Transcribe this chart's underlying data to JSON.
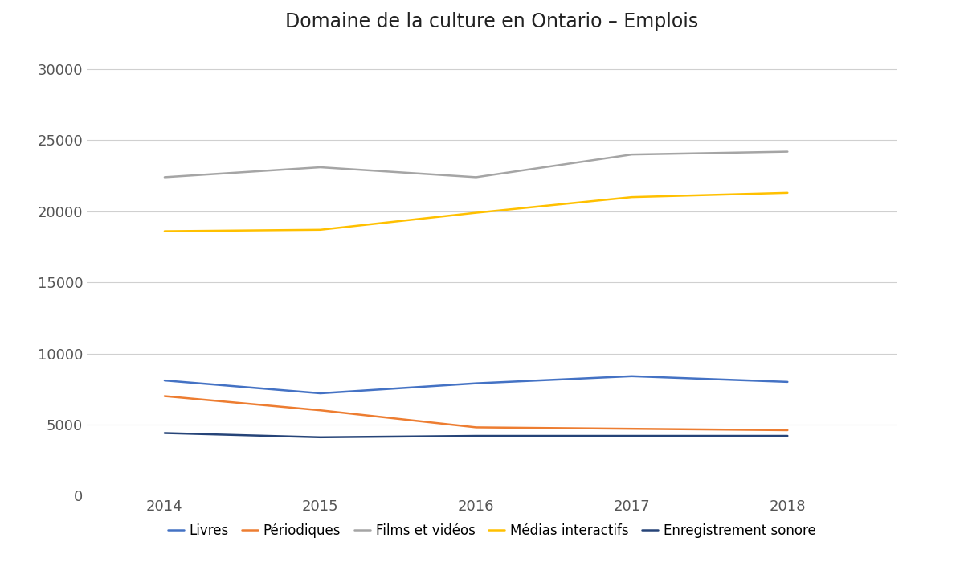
{
  "title": "Domaine de la culture en Ontario – Emplois",
  "years": [
    2014,
    2015,
    2016,
    2017,
    2018
  ],
  "series": [
    {
      "label": "Livres",
      "color": "#4472C4",
      "values": [
        8100,
        7200,
        7900,
        8400,
        8000
      ]
    },
    {
      "label": "Périodiques",
      "color": "#ED7D31",
      "values": [
        7000,
        6000,
        4800,
        4700,
        4600
      ]
    },
    {
      "label": "Films et vidéos",
      "color": "#A5A5A5",
      "values": [
        22400,
        23100,
        22400,
        24000,
        24200
      ]
    },
    {
      "label": "Médias interactifs",
      "color": "#FFC000",
      "values": [
        18600,
        18700,
        19900,
        21000,
        21300
      ]
    },
    {
      "label": "Enregistrement sonore",
      "color": "#264478",
      "values": [
        4400,
        4100,
        4200,
        4200,
        4200
      ]
    }
  ],
  "ylim": [
    0,
    32000
  ],
  "yticks": [
    0,
    5000,
    10000,
    15000,
    20000,
    25000,
    30000
  ],
  "title_fontsize": 17,
  "tick_fontsize": 13,
  "legend_fontsize": 12,
  "background_color": "#ffffff",
  "grid_color": "#d0d0d0",
  "line_width": 1.8
}
